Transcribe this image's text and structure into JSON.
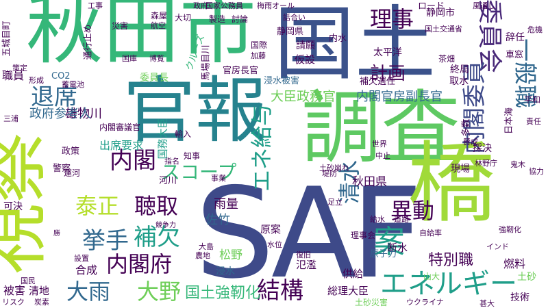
{
  "palette": {
    "purple": "#440154",
    "indigo": "#3e4a89",
    "blue": "#31688e",
    "teal": "#26828e",
    "green": "#1f9e89",
    "lightgreen": "#35b779",
    "lime": "#6ece58",
    "yellow": "#b5de2b",
    "brightyellow": "#d8e219",
    "navy": "#3b528b",
    "darkpurple": "#482878",
    "seafoam": "#21918c",
    "lemon": "#fde725",
    "gray": "#6b6b6b"
  },
  "words": [
    {
      "text": "SAF",
      "color": "#3e4a89"
    },
    {
      "text": "秋田市",
      "color": "#35b779"
    },
    {
      "text": "国土",
      "color": "#3b528b"
    },
    {
      "text": "調査",
      "color": "#5ec962"
    },
    {
      "text": "官報",
      "color": "#26828e"
    },
    {
      "text": "視察",
      "color": "#b5de2b"
    },
    {
      "text": "橋",
      "color": "#a0da39"
    },
    {
      "text": "理事",
      "color": "#440154"
    },
    {
      "text": "委員会",
      "color": "#482878"
    },
    {
      "text": "一般職",
      "color": "#31688e"
    },
    {
      "text": "内閣委員",
      "color": "#3e4a89"
    },
    {
      "text": "退席",
      "color": "#31688e"
    },
    {
      "text": "エネ給与",
      "color": "#1f9e89"
    },
    {
      "text": "内閣",
      "color": "#440154"
    },
    {
      "text": "泰正",
      "color": "#b5de2b"
    },
    {
      "text": "聴取",
      "color": "#440154"
    },
    {
      "text": "スコープ",
      "color": "#35b779"
    },
    {
      "text": "挙手",
      "color": "#31688e"
    },
    {
      "text": "補欠",
      "color": "#1f9e89"
    },
    {
      "text": "内閣府",
      "color": "#440154"
    },
    {
      "text": "大雨",
      "color": "#31688e"
    },
    {
      "text": "大野",
      "color": "#6ece58"
    },
    {
      "text": "結構",
      "color": "#440154"
    },
    {
      "text": "エネルギー",
      "color": "#1f9e89"
    },
    {
      "text": "異動",
      "color": "#440154"
    },
    {
      "text": "清水",
      "color": "#31688e"
    },
    {
      "text": "案",
      "color": "#1f9e89"
    },
    {
      "text": "特別職",
      "color": "#440154"
    },
    {
      "text": "国土強靭化",
      "color": "#35b779"
    },
    {
      "text": "雄物川",
      "color": "#440154"
    },
    {
      "text": "政府参考人",
      "color": "#31688e"
    },
    {
      "text": "大臣政務官",
      "color": "#6ece58"
    },
    {
      "text": "内閣官房副長官",
      "color": "#31688e"
    },
    {
      "text": "計画",
      "color": "#440154"
    },
    {
      "text": "出席要求",
      "color": "#1f9e89"
    },
    {
      "text": "内閣審議官",
      "color": "#440154"
    },
    {
      "text": "秋田県",
      "color": "#440154"
    },
    {
      "text": "雨量",
      "color": "#440154"
    },
    {
      "text": "佐竹",
      "color": "#31688e"
    },
    {
      "text": "松野",
      "color": "#6ece58"
    },
    {
      "text": "総理大臣",
      "color": "#440154"
    },
    {
      "text": "技術",
      "color": "#440154"
    },
    {
      "text": "燃料",
      "color": "#440154"
    },
    {
      "text": "被害",
      "color": "#440154"
    },
    {
      "text": "清地",
      "color": "#440154"
    },
    {
      "text": "合成",
      "color": "#440154"
    },
    {
      "text": "可決",
      "color": "#440154"
    },
    {
      "text": "職員",
      "color": "#440154"
    },
    {
      "text": "政策",
      "color": "#440154"
    },
    {
      "text": "CO2",
      "color": "#31688e"
    },
    {
      "text": "国務大臣",
      "color": "#1f9e89"
    },
    {
      "text": "静岡市",
      "color": "#440154"
    },
    {
      "text": "太平洋",
      "color": "#440154"
    },
    {
      "text": "仮設",
      "color": "#440154"
    },
    {
      "text": "終局",
      "color": "#440154"
    },
    {
      "text": "取水",
      "color": "#440154"
    },
    {
      "text": "採決",
      "color": "#440154"
    },
    {
      "text": "現場",
      "color": "#440154"
    },
    {
      "text": "断水",
      "color": "#440154"
    },
    {
      "text": "原子力",
      "color": "#31688e"
    },
    {
      "text": "原案",
      "color": "#440154"
    },
    {
      "text": "氾濫",
      "color": "#440154"
    },
    {
      "text": "供給",
      "color": "#440154"
    },
    {
      "text": "土砂",
      "color": "#6ece58"
    },
    {
      "text": "浸水被害",
      "color": "#31688e"
    },
    {
      "text": "補欠選任",
      "color": "#440154"
    },
    {
      "text": "官房長官",
      "color": "#440154"
    },
    {
      "text": "委員長",
      "color": "#6ece58"
    },
    {
      "text": "クルーズ",
      "color": "#35b779"
    },
    {
      "text": "五城目町",
      "color": "#440154"
    },
    {
      "text": "通行止め",
      "color": "#440154"
    },
    {
      "text": "辞任",
      "color": "#440154"
    },
    {
      "text": "日本海",
      "color": "#440154"
    },
    {
      "text": "多数",
      "color": "#440154"
    },
    {
      "text": "賛成",
      "color": "#440154"
    },
    {
      "text": "輸入",
      "color": "#440154"
    },
    {
      "text": "知事",
      "color": "#440154"
    },
    {
      "text": "河川",
      "color": "#440154"
    },
    {
      "text": "警察",
      "color": "#440154"
    },
    {
      "text": "浸水",
      "color": "#31688e"
    },
    {
      "text": "給水",
      "color": "#440154"
    },
    {
      "text": "道路",
      "color": "#440154"
    },
    {
      "text": "茶畑",
      "color": "#440154"
    },
    {
      "text": "ロード",
      "color": "#440154"
    },
    {
      "text": "請願",
      "color": "#440154"
    },
    {
      "text": "内水",
      "color": "#440154"
    },
    {
      "text": "静岡県",
      "color": "#440154"
    },
    {
      "text": "国土交通省",
      "color": "#440154"
    },
    {
      "text": "森屋",
      "color": "#440154"
    },
    {
      "text": "航空",
      "color": "#440154"
    },
    {
      "text": "災害",
      "color": "#440154"
    },
    {
      "text": "大切",
      "color": "#440154"
    },
    {
      "text": "製造",
      "color": "#440154"
    },
    {
      "text": "討論",
      "color": "#440154"
    },
    {
      "text": "政府",
      "color": "#440154"
    },
    {
      "text": "風通し",
      "color": "#440154"
    },
    {
      "text": "梅雨オール",
      "color": "#440154"
    },
    {
      "text": "国家公務員",
      "color": "#440154"
    },
    {
      "text": "話合い",
      "color": "#440154"
    },
    {
      "text": "工事",
      "color": "#440154"
    },
    {
      "text": "車窓",
      "color": "#440154"
    },
    {
      "text": "危機",
      "color": "#440154"
    },
    {
      "text": "平和",
      "color": "#440154"
    },
    {
      "text": "責任",
      "color": "#440154"
    },
    {
      "text": "協力",
      "color": "#440154"
    },
    {
      "text": "鬼木",
      "color": "#440154"
    },
    {
      "text": "林野庁",
      "color": "#440154"
    },
    {
      "text": "世界",
      "color": "#440154"
    },
    {
      "text": "指名",
      "color": "#440154"
    },
    {
      "text": "事業",
      "color": "#440154"
    },
    {
      "text": "土砂崩れ",
      "color": "#440154"
    },
    {
      "text": "運河",
      "color": "#440154"
    },
    {
      "text": "勝",
      "color": "#440154"
    },
    {
      "text": "形成",
      "color": "#440154"
    },
    {
      "text": "蓄電池",
      "color": "#440154"
    },
    {
      "text": "策定",
      "color": "#440154"
    },
    {
      "text": "三浦",
      "color": "#440154"
    },
    {
      "text": "設置",
      "color": "#440154"
    },
    {
      "text": "農地",
      "color": "#440154"
    },
    {
      "text": "大島",
      "color": "#440154"
    },
    {
      "text": "水位",
      "color": "#440154"
    },
    {
      "text": "復旧",
      "color": "#440154"
    },
    {
      "text": "理事会",
      "color": "#440154"
    },
    {
      "text": "自給率",
      "color": "#440154"
    },
    {
      "text": "強靭化",
      "color": "#440154"
    },
    {
      "text": "インド",
      "color": "#440154"
    },
    {
      "text": "リスク",
      "color": "#440154"
    },
    {
      "text": "炭素",
      "color": "#440154"
    },
    {
      "text": "国民",
      "color": "#440154"
    },
    {
      "text": "土砂災害",
      "color": "#6ece58"
    },
    {
      "text": "ウクライナ",
      "color": "#440154"
    },
    {
      "text": "甚大",
      "color": "#440154"
    },
    {
      "text": "国際",
      "color": "#440154"
    },
    {
      "text": "加藤",
      "color": "#440154"
    },
    {
      "text": "国庫",
      "color": "#440154"
    },
    {
      "text": "博覧",
      "color": "#440154"
    },
    {
      "text": "馬場目川",
      "color": "#440154"
    },
    {
      "text": "堤防",
      "color": "#440154"
    },
    {
      "text": "中止",
      "color": "#440154"
    },
    {
      "text": "足立",
      "color": "#440154"
    },
    {
      "text": "競争力",
      "color": "#440154"
    },
    {
      "text": "山大",
      "color": "#6ece58"
    }
  ]
}
